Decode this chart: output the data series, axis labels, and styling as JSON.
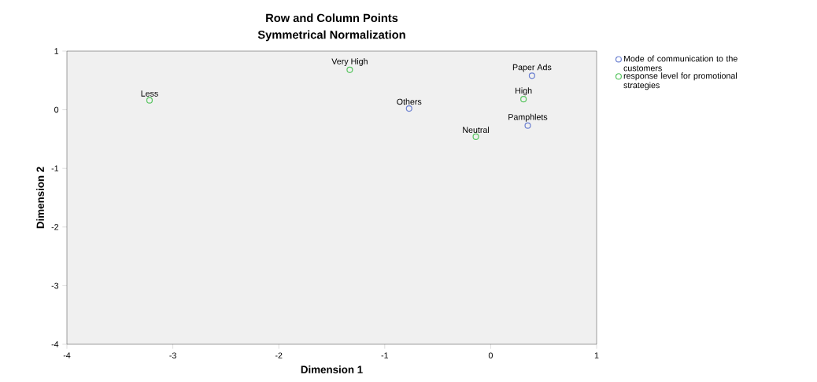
{
  "chart_data": {
    "type": "scatter",
    "title": "Row and Column Points",
    "subtitle": "Symmetrical Normalization",
    "xlabel": "Dimension 1",
    "ylabel": "Dimension 2",
    "xlim": [
      -4,
      1
    ],
    "ylim": [
      -4,
      1
    ],
    "xticks": [
      -4,
      -3,
      -2,
      -1,
      0,
      1
    ],
    "yticks": [
      -4,
      -3,
      -2,
      -1,
      0,
      1
    ],
    "grid": false,
    "legend": "right",
    "marker": "circle",
    "series": [
      {
        "name": "Mode of communication to the customers",
        "color": "#6a7fd0",
        "x": [
          -0.77,
          0.39,
          0.35
        ],
        "values": [
          0.02,
          0.58,
          -0.27
        ]
      },
      {
        "name": "response level for promotional strategies",
        "color": "#56c45e",
        "x": [
          -3.22,
          -1.33,
          0.31,
          -0.14
        ],
        "values": [
          0.16,
          0.68,
          0.18,
          -0.46
        ]
      }
    ],
    "annotations": [
      {
        "text": "Others",
        "x": -0.77,
        "y": 0.02
      },
      {
        "text": "Paper Ads",
        "x": 0.39,
        "y": 0.58
      },
      {
        "text": "Pamphlets",
        "x": 0.35,
        "y": -0.27
      },
      {
        "text": "Less",
        "x": -3.22,
        "y": 0.16
      },
      {
        "text": "Very High",
        "x": -1.33,
        "y": 0.68
      },
      {
        "text": "High",
        "x": 0.31,
        "y": 0.18
      },
      {
        "text": "Neutral",
        "x": -0.14,
        "y": -0.46
      }
    ]
  }
}
